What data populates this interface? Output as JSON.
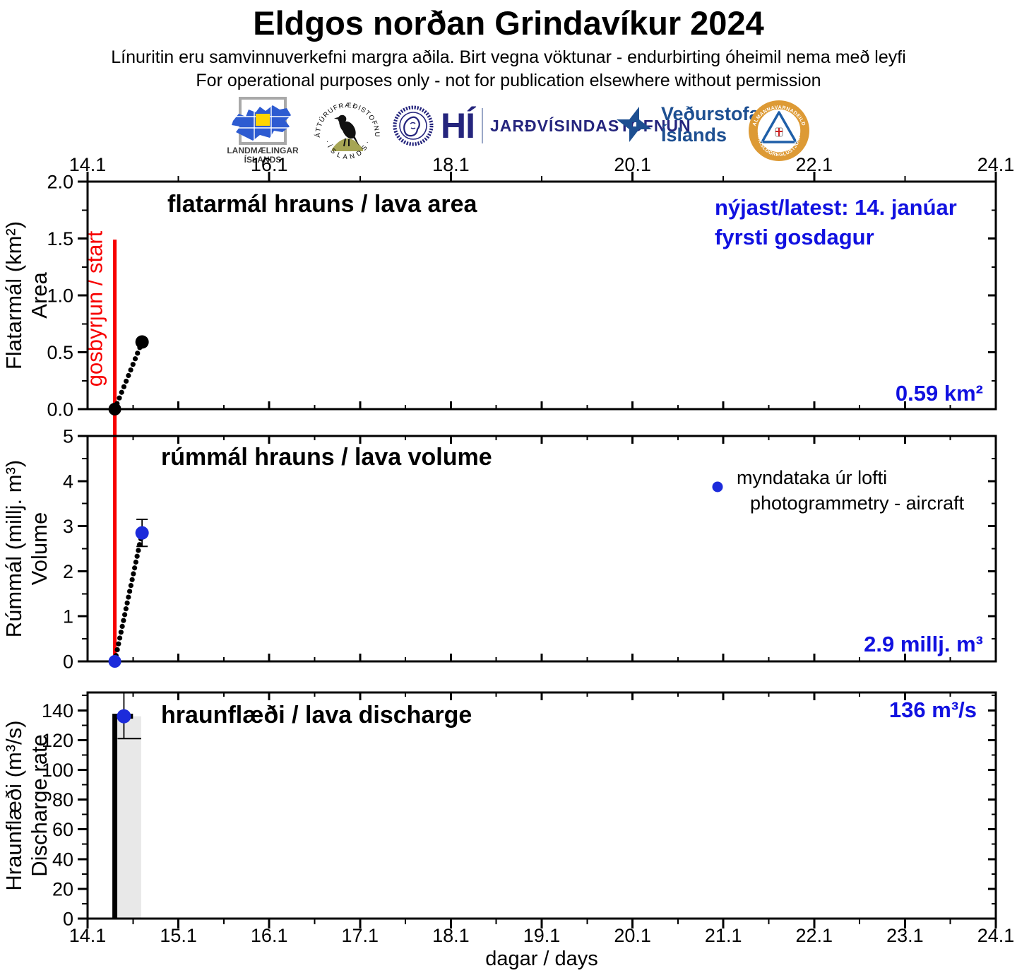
{
  "header": {
    "title": "Eldgos norðan Grindavíkur 2024",
    "subtitle_is": "Línuritin eru samvinnuverkefni margra aðila.  Birt vegna vöktunar - endurbirting óheimil nema með leyfi",
    "subtitle_en": "For operational purposes only - not for publication elsewhere without permission"
  },
  "logos": {
    "landmaelingar": {
      "line1": "LANDMÆLINGAR",
      "line2": "ÍSLANDS"
    },
    "natturufraedistofnun": {
      "arc_top": "NÁTTÚRUFRÆÐISTOFNUN",
      "arc_bottom": "· Í S L A N D S ·"
    },
    "haskoli_islands": {
      "abbr": "HÍ",
      "institute": "JARÐVÍSINDASTOFNUN"
    },
    "vedurstofa": {
      "line1": "Veðurstofa",
      "line2": "Íslands"
    },
    "almannavarnir": {
      "arc_top": "ALMANNAVARNADEILD",
      "arc_bottom": "RÍKISLÖGREGLUSTJÓRA"
    }
  },
  "colors": {
    "annotation_blue": "#1111e0",
    "marker_blue": "#1c2bdb",
    "event_red": "#f70000",
    "fill_gray": "#e8e8e8",
    "navy": "#25257d",
    "met_navy": "#1d4f91",
    "landm_blue": "#2d5bd1",
    "landm_yellow": "#ffd500",
    "olive": "#a6a554",
    "orange": "#dd9a35",
    "civil_blue": "#1f5fa8"
  },
  "xaxis": {
    "label": "dagar / days",
    "range": [
      14.1,
      24.1
    ],
    "top_major_ticks": [
      14.1,
      16.1,
      18.1,
      20.1,
      22.1,
      24.1
    ],
    "top_tick_labels": [
      "14.1",
      "16.1",
      "18.1",
      "20.1",
      "22.1",
      "24.1"
    ],
    "top_minor_ticks": [
      15.1,
      17.1,
      19.1,
      21.1,
      23.1
    ],
    "bottom_major_ticks": [
      14.1,
      15.1,
      16.1,
      17.1,
      18.1,
      19.1,
      20.1,
      21.1,
      22.1,
      23.1,
      24.1
    ],
    "bottom_tick_labels": [
      "14.1",
      "15.1",
      "16.1",
      "17.1",
      "18.1",
      "19.1",
      "20.1",
      "21.1",
      "22.1",
      "23.1",
      "24.1"
    ],
    "minor_step": 0.5
  },
  "chart_data": [
    {
      "type": "scatter",
      "title": "flatarmál hrauns / lava area",
      "ylabel_is": "Flatarmál (km²)",
      "ylabel_en": "Area",
      "ylim": [
        0,
        2.0
      ],
      "yticks": [
        0,
        0.5,
        1.0,
        1.5,
        2.0
      ],
      "ytick_labels": [
        "0.0",
        "0.5",
        "1.0",
        "1.5",
        "2.0"
      ],
      "yminor_step": 0.25,
      "series": [
        {
          "name": "lava-area",
          "marker": "black-dot",
          "line": "dotted",
          "x": [
            14.4,
            14.7
          ],
          "y": [
            0,
            0.59
          ]
        }
      ],
      "event_line": {
        "x": 14.4,
        "label": "gosbyrjun / start",
        "y_from": 1.49
      },
      "annotations": {
        "latest_line1": "nýjast/latest: 14. janúar",
        "latest_line2": "fyrsti gosdagur",
        "value_label": "0.59 km²"
      }
    },
    {
      "type": "scatter",
      "title": "rúmmál hrauns / lava volume",
      "ylabel_is": "Rúmmál (millj. m³)",
      "ylabel_en": "Volume",
      "ylim": [
        0,
        5
      ],
      "yticks": [
        0,
        1,
        2,
        3,
        4,
        5
      ],
      "ytick_labels": [
        "0",
        "1",
        "2",
        "3",
        "4",
        "5"
      ],
      "yminor_step": 0.5,
      "series": [
        {
          "name": "lava-volume",
          "marker": "blue-dot",
          "line": "dotted",
          "x": [
            14.4,
            14.7
          ],
          "y": [
            0,
            2.85
          ],
          "yerr": [
            0,
            0.3
          ]
        }
      ],
      "legend": {
        "marker": "blue-dot",
        "line1": "myndataka úr lofti",
        "line2": "photogrammetry - aircraft"
      },
      "annotations": {
        "value_label": "2.9 millj. m³"
      }
    },
    {
      "type": "step",
      "title": "hraunflæði / lava discharge",
      "ylabel_is": "Hraunflæði (m³/s)",
      "ylabel_en": "Discharge rate",
      "ylim": [
        0,
        152
      ],
      "yticks": [
        0,
        20,
        40,
        60,
        80,
        100,
        120,
        140
      ],
      "ytick_labels": [
        "0",
        "20",
        "40",
        "60",
        "80",
        "100",
        "120",
        "140"
      ],
      "yminor_step": 10,
      "step": {
        "x_start": 14.4,
        "x_end": 14.6,
        "value": 136,
        "fill_x": [
          14.43,
          14.69
        ],
        "marker_x": 14.5,
        "err_low": 121,
        "err_high": 152
      },
      "annotations": {
        "value_label": "136 m³/s"
      }
    }
  ]
}
